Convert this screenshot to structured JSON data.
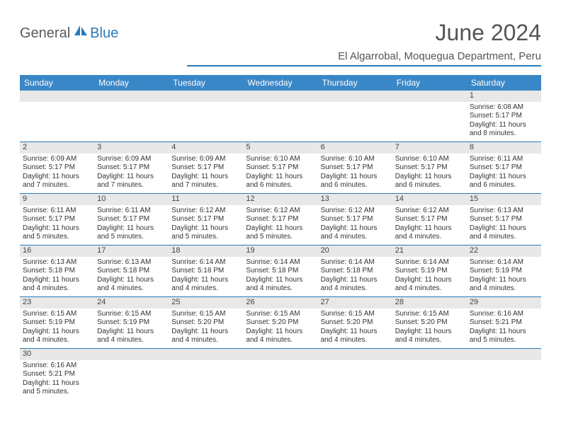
{
  "brand": {
    "part1": "General",
    "part2": "Blue"
  },
  "title": "June 2024",
  "location": "El Algarrobal, Moquegua Department, Peru",
  "colors": {
    "header_bg": "#3a87c7",
    "divider": "#2a7ab8",
    "daynum_bg": "#e8e8e8",
    "text": "#333333"
  },
  "day_names": [
    "Sunday",
    "Monday",
    "Tuesday",
    "Wednesday",
    "Thursday",
    "Friday",
    "Saturday"
  ],
  "weeks": [
    [
      {
        "n": "",
        "empty": true
      },
      {
        "n": "",
        "empty": true
      },
      {
        "n": "",
        "empty": true
      },
      {
        "n": "",
        "empty": true
      },
      {
        "n": "",
        "empty": true
      },
      {
        "n": "",
        "empty": true
      },
      {
        "n": "1",
        "sr": "Sunrise: 6:08 AM",
        "ss": "Sunset: 5:17 PM",
        "d1": "Daylight: 11 hours",
        "d2": "and 8 minutes."
      }
    ],
    [
      {
        "n": "2",
        "sr": "Sunrise: 6:09 AM",
        "ss": "Sunset: 5:17 PM",
        "d1": "Daylight: 11 hours",
        "d2": "and 7 minutes."
      },
      {
        "n": "3",
        "sr": "Sunrise: 6:09 AM",
        "ss": "Sunset: 5:17 PM",
        "d1": "Daylight: 11 hours",
        "d2": "and 7 minutes."
      },
      {
        "n": "4",
        "sr": "Sunrise: 6:09 AM",
        "ss": "Sunset: 5:17 PM",
        "d1": "Daylight: 11 hours",
        "d2": "and 7 minutes."
      },
      {
        "n": "5",
        "sr": "Sunrise: 6:10 AM",
        "ss": "Sunset: 5:17 PM",
        "d1": "Daylight: 11 hours",
        "d2": "and 6 minutes."
      },
      {
        "n": "6",
        "sr": "Sunrise: 6:10 AM",
        "ss": "Sunset: 5:17 PM",
        "d1": "Daylight: 11 hours",
        "d2": "and 6 minutes."
      },
      {
        "n": "7",
        "sr": "Sunrise: 6:10 AM",
        "ss": "Sunset: 5:17 PM",
        "d1": "Daylight: 11 hours",
        "d2": "and 6 minutes."
      },
      {
        "n": "8",
        "sr": "Sunrise: 6:11 AM",
        "ss": "Sunset: 5:17 PM",
        "d1": "Daylight: 11 hours",
        "d2": "and 6 minutes."
      }
    ],
    [
      {
        "n": "9",
        "sr": "Sunrise: 6:11 AM",
        "ss": "Sunset: 5:17 PM",
        "d1": "Daylight: 11 hours",
        "d2": "and 5 minutes."
      },
      {
        "n": "10",
        "sr": "Sunrise: 6:11 AM",
        "ss": "Sunset: 5:17 PM",
        "d1": "Daylight: 11 hours",
        "d2": "and 5 minutes."
      },
      {
        "n": "11",
        "sr": "Sunrise: 6:12 AM",
        "ss": "Sunset: 5:17 PM",
        "d1": "Daylight: 11 hours",
        "d2": "and 5 minutes."
      },
      {
        "n": "12",
        "sr": "Sunrise: 6:12 AM",
        "ss": "Sunset: 5:17 PM",
        "d1": "Daylight: 11 hours",
        "d2": "and 5 minutes."
      },
      {
        "n": "13",
        "sr": "Sunrise: 6:12 AM",
        "ss": "Sunset: 5:17 PM",
        "d1": "Daylight: 11 hours",
        "d2": "and 4 minutes."
      },
      {
        "n": "14",
        "sr": "Sunrise: 6:12 AM",
        "ss": "Sunset: 5:17 PM",
        "d1": "Daylight: 11 hours",
        "d2": "and 4 minutes."
      },
      {
        "n": "15",
        "sr": "Sunrise: 6:13 AM",
        "ss": "Sunset: 5:17 PM",
        "d1": "Daylight: 11 hours",
        "d2": "and 4 minutes."
      }
    ],
    [
      {
        "n": "16",
        "sr": "Sunrise: 6:13 AM",
        "ss": "Sunset: 5:18 PM",
        "d1": "Daylight: 11 hours",
        "d2": "and 4 minutes."
      },
      {
        "n": "17",
        "sr": "Sunrise: 6:13 AM",
        "ss": "Sunset: 5:18 PM",
        "d1": "Daylight: 11 hours",
        "d2": "and 4 minutes."
      },
      {
        "n": "18",
        "sr": "Sunrise: 6:14 AM",
        "ss": "Sunset: 5:18 PM",
        "d1": "Daylight: 11 hours",
        "d2": "and 4 minutes."
      },
      {
        "n": "19",
        "sr": "Sunrise: 6:14 AM",
        "ss": "Sunset: 5:18 PM",
        "d1": "Daylight: 11 hours",
        "d2": "and 4 minutes."
      },
      {
        "n": "20",
        "sr": "Sunrise: 6:14 AM",
        "ss": "Sunset: 5:18 PM",
        "d1": "Daylight: 11 hours",
        "d2": "and 4 minutes."
      },
      {
        "n": "21",
        "sr": "Sunrise: 6:14 AM",
        "ss": "Sunset: 5:19 PM",
        "d1": "Daylight: 11 hours",
        "d2": "and 4 minutes."
      },
      {
        "n": "22",
        "sr": "Sunrise: 6:14 AM",
        "ss": "Sunset: 5:19 PM",
        "d1": "Daylight: 11 hours",
        "d2": "and 4 minutes."
      }
    ],
    [
      {
        "n": "23",
        "sr": "Sunrise: 6:15 AM",
        "ss": "Sunset: 5:19 PM",
        "d1": "Daylight: 11 hours",
        "d2": "and 4 minutes."
      },
      {
        "n": "24",
        "sr": "Sunrise: 6:15 AM",
        "ss": "Sunset: 5:19 PM",
        "d1": "Daylight: 11 hours",
        "d2": "and 4 minutes."
      },
      {
        "n": "25",
        "sr": "Sunrise: 6:15 AM",
        "ss": "Sunset: 5:20 PM",
        "d1": "Daylight: 11 hours",
        "d2": "and 4 minutes."
      },
      {
        "n": "26",
        "sr": "Sunrise: 6:15 AM",
        "ss": "Sunset: 5:20 PM",
        "d1": "Daylight: 11 hours",
        "d2": "and 4 minutes."
      },
      {
        "n": "27",
        "sr": "Sunrise: 6:15 AM",
        "ss": "Sunset: 5:20 PM",
        "d1": "Daylight: 11 hours",
        "d2": "and 4 minutes."
      },
      {
        "n": "28",
        "sr": "Sunrise: 6:15 AM",
        "ss": "Sunset: 5:20 PM",
        "d1": "Daylight: 11 hours",
        "d2": "and 4 minutes."
      },
      {
        "n": "29",
        "sr": "Sunrise: 6:16 AM",
        "ss": "Sunset: 5:21 PM",
        "d1": "Daylight: 11 hours",
        "d2": "and 5 minutes."
      }
    ],
    [
      {
        "n": "30",
        "sr": "Sunrise: 6:16 AM",
        "ss": "Sunset: 5:21 PM",
        "d1": "Daylight: 11 hours",
        "d2": "and 5 minutes."
      },
      {
        "n": "",
        "empty": true
      },
      {
        "n": "",
        "empty": true
      },
      {
        "n": "",
        "empty": true
      },
      {
        "n": "",
        "empty": true
      },
      {
        "n": "",
        "empty": true
      },
      {
        "n": "",
        "empty": true
      }
    ]
  ]
}
